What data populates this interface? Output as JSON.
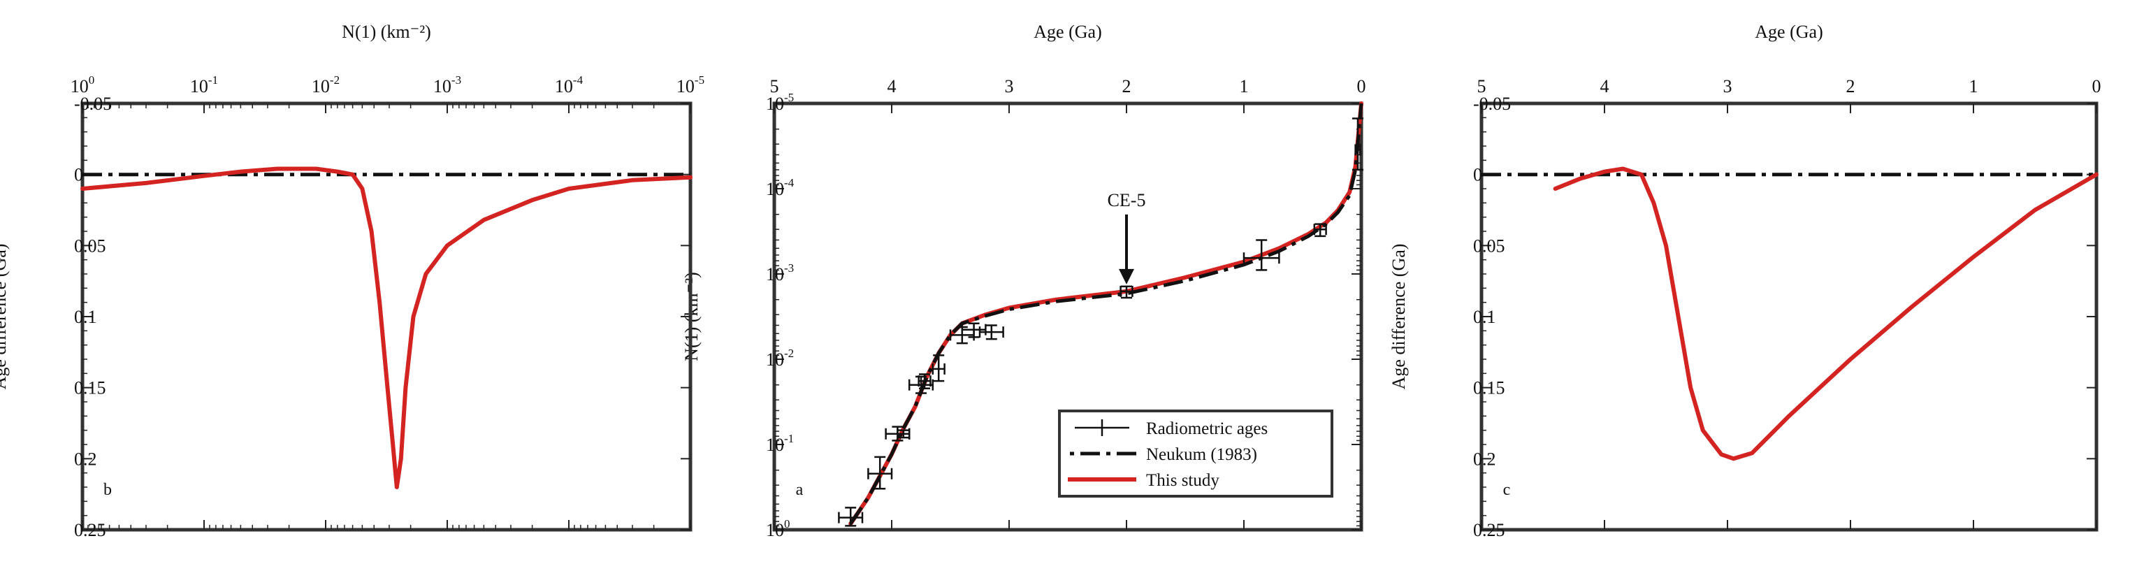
{
  "figure": {
    "mirrored": true
  },
  "colors": {
    "study": "#d42421",
    "reference": "#111111",
    "marker": "#111111",
    "frame": "#333333"
  },
  "chart_data": [
    {
      "id": "a",
      "type": "line",
      "panel_label": "a",
      "top_axis": {
        "label": "Age (Ga)",
        "range": [
          5,
          0
        ],
        "ticks": [
          5,
          4,
          3,
          2,
          1,
          0
        ]
      },
      "left_axis": {
        "label": "N(1) (km⁻²)",
        "scale": "log",
        "range": [
          1e-05,
          1
        ],
        "ticks": [
          {
            "value": 1e-05,
            "base": "10",
            "exp": "-5"
          },
          {
            "value": 0.0001,
            "base": "10",
            "exp": "-4"
          },
          {
            "value": 0.001,
            "base": "10",
            "exp": "-3"
          },
          {
            "value": 0.01,
            "base": "10",
            "exp": "-2"
          },
          {
            "value": 0.1,
            "base": "10",
            "exp": "-1"
          },
          {
            "value": 1,
            "base": "10",
            "exp": "0"
          }
        ]
      },
      "annotation": {
        "text": "CE-5",
        "x": 2.0,
        "y": 0.0016
      },
      "legend": [
        {
          "label": "Radiometric ages",
          "marker": "errorbar"
        },
        {
          "label": "Neukum (1983)",
          "marker": "dashdot"
        },
        {
          "label": "This study",
          "marker": "red-line"
        }
      ],
      "series": [
        {
          "name": "This study",
          "style": "study",
          "points": [
            [
              4.35,
              0.85
            ],
            [
              4.2,
              0.42
            ],
            [
              4.0,
              0.13
            ],
            [
              3.9,
              0.065
            ],
            [
              3.8,
              0.036
            ],
            [
              3.7,
              0.016
            ],
            [
              3.6,
              0.0085
            ],
            [
              3.5,
              0.0052
            ],
            [
              3.4,
              0.0038
            ],
            [
              3.2,
              0.003
            ],
            [
              3.0,
              0.0025
            ],
            [
              2.6,
              0.002
            ],
            [
              2.0,
              0.0016
            ],
            [
              1.5,
              0.0011
            ],
            [
              1.0,
              0.00072
            ],
            [
              0.7,
              0.0005
            ],
            [
              0.45,
              0.00034
            ],
            [
              0.3,
              0.00025
            ],
            [
              0.2,
              0.00018
            ],
            [
              0.1,
              0.00011
            ],
            [
              0.05,
              5.5e-05
            ],
            [
              0.0,
              1e-05
            ]
          ]
        },
        {
          "name": "Neukum (1983)",
          "style": "reference",
          "points": [
            [
              4.35,
              0.85
            ],
            [
              4.2,
              0.42
            ],
            [
              4.0,
              0.13
            ],
            [
              3.9,
              0.065
            ],
            [
              3.8,
              0.036
            ],
            [
              3.7,
              0.016
            ],
            [
              3.6,
              0.0085
            ],
            [
              3.5,
              0.0052
            ],
            [
              3.4,
              0.0038
            ],
            [
              3.2,
              0.0031
            ],
            [
              3.0,
              0.0026
            ],
            [
              2.6,
              0.0021
            ],
            [
              2.0,
              0.0017
            ],
            [
              1.5,
              0.0012
            ],
            [
              1.0,
              0.00078
            ],
            [
              0.7,
              0.00054
            ],
            [
              0.45,
              0.00036
            ],
            [
              0.3,
              0.00026
            ],
            [
              0.2,
              0.00019
            ],
            [
              0.1,
              0.00012
            ],
            [
              0.05,
              6e-05
            ],
            [
              0.0,
              1e-05
            ]
          ]
        }
      ],
      "radiometric_ages": [
        {
          "age": 4.35,
          "n": 0.72,
          "age_err": 0.1,
          "n_lo": 0.55,
          "n_hi": 0.9
        },
        {
          "age": 4.1,
          "n": 0.22,
          "age_err": 0.1,
          "n_lo": 0.14,
          "n_hi": 0.33
        },
        {
          "age": 3.95,
          "n": 0.075,
          "age_err": 0.1,
          "n_lo": 0.062,
          "n_hi": 0.09
        },
        {
          "age": 3.9,
          "n": 0.075,
          "age_err": 0.05,
          "n_lo": 0.068,
          "n_hi": 0.083
        },
        {
          "age": 3.75,
          "n": 0.02,
          "age_err": 0.1,
          "n_lo": 0.016,
          "n_hi": 0.025
        },
        {
          "age": 3.72,
          "n": 0.018,
          "age_err": 0.05,
          "n_lo": 0.015,
          "n_hi": 0.022
        },
        {
          "age": 3.6,
          "n": 0.013,
          "age_err": 0.05,
          "n_lo": 0.009,
          "n_hi": 0.018
        },
        {
          "age": 3.4,
          "n": 0.0052,
          "age_err": 0.1,
          "n_lo": 0.0042,
          "n_hi": 0.0065
        },
        {
          "age": 3.3,
          "n": 0.0045,
          "age_err": 0.1,
          "n_lo": 0.0038,
          "n_hi": 0.0055
        },
        {
          "age": 3.15,
          "n": 0.0048,
          "age_err": 0.1,
          "n_lo": 0.004,
          "n_hi": 0.0058
        },
        {
          "age": 2.0,
          "n": 0.0016,
          "age_err": 0.05,
          "n_lo": 0.0014,
          "n_hi": 0.0019
        },
        {
          "age": 0.85,
          "n": 0.00065,
          "age_err": 0.15,
          "n_lo": 0.0004,
          "n_hi": 0.0009
        },
        {
          "age": 0.35,
          "n": 0.0003,
          "age_err": 0.05,
          "n_lo": 0.00026,
          "n_hi": 0.00036
        },
        {
          "age": 0.03,
          "n": 3.5e-05,
          "age_err": 0.02,
          "n_lo": 1.5e-05,
          "n_hi": 6e-05
        }
      ]
    },
    {
      "id": "b",
      "type": "line",
      "panel_label": "b",
      "top_axis": {
        "label": "N(1) (km⁻²)",
        "scale": "log",
        "range": [
          1,
          1e-05
        ],
        "ticks": [
          {
            "value": 1,
            "base": "10",
            "exp": "0"
          },
          {
            "value": 0.1,
            "base": "10",
            "exp": "-1"
          },
          {
            "value": 0.01,
            "base": "10",
            "exp": "-2"
          },
          {
            "value": 0.001,
            "base": "10",
            "exp": "-3"
          },
          {
            "value": 0.0001,
            "base": "10",
            "exp": "-4"
          },
          {
            "value": 1e-05,
            "base": "10",
            "exp": "-5"
          }
        ]
      },
      "left_axis": {
        "label": "Age difference (Ga)",
        "range": [
          -0.05,
          0.25
        ],
        "ticks": [
          "-0.05",
          "0",
          "0.05",
          "0.1",
          "0.15",
          "0.2",
          "0.25"
        ]
      },
      "series": [
        {
          "name": "Neukum (1983)",
          "style": "reference",
          "points": [
            [
              1,
              0
            ],
            [
              1e-05,
              0
            ]
          ]
        },
        {
          "name": "This study",
          "style": "study",
          "points": [
            [
              1,
              0.01
            ],
            [
              0.3,
              0.006
            ],
            [
              0.1,
              0.001
            ],
            [
              0.05,
              -0.002
            ],
            [
              0.025,
              -0.004
            ],
            [
              0.012,
              -0.004
            ],
            [
              0.008,
              -0.002
            ],
            [
              0.006,
              0.0
            ],
            [
              0.005,
              0.01
            ],
            [
              0.0042,
              0.04
            ],
            [
              0.0036,
              0.09
            ],
            [
              0.0031,
              0.15
            ],
            [
              0.0028,
              0.19
            ],
            [
              0.0026,
              0.22
            ],
            [
              0.0024,
              0.2
            ],
            [
              0.0022,
              0.15
            ],
            [
              0.0019,
              0.1
            ],
            [
              0.0015,
              0.07
            ],
            [
              0.001,
              0.05
            ],
            [
              0.0005,
              0.032
            ],
            [
              0.0002,
              0.018
            ],
            [
              0.0001,
              0.01
            ],
            [
              3e-05,
              0.004
            ],
            [
              1e-05,
              0.002
            ]
          ]
        }
      ]
    },
    {
      "id": "c",
      "type": "line",
      "panel_label": "c",
      "top_axis": {
        "label": "Age (Ga)",
        "range": [
          5,
          0
        ],
        "ticks": [
          5,
          4,
          3,
          2,
          1,
          0
        ]
      },
      "left_axis": {
        "label": "Age difference (Ga)",
        "range": [
          -0.05,
          0.25
        ],
        "ticks": [
          "-0.05",
          "0",
          "0.05",
          "0.1",
          "0.15",
          "0.2",
          "0.25"
        ]
      },
      "series": [
        {
          "name": "Neukum (1983)",
          "style": "reference",
          "points": [
            [
              5,
              0
            ],
            [
              0,
              0
            ]
          ]
        },
        {
          "name": "This study",
          "style": "study",
          "points": [
            [
              4.4,
              0.01
            ],
            [
              4.2,
              0.003
            ],
            [
              4.0,
              -0.002
            ],
            [
              3.85,
              -0.004
            ],
            [
              3.7,
              0.0
            ],
            [
              3.6,
              0.02
            ],
            [
              3.5,
              0.05
            ],
            [
              3.4,
              0.1
            ],
            [
              3.3,
              0.15
            ],
            [
              3.2,
              0.18
            ],
            [
              3.05,
              0.197
            ],
            [
              2.95,
              0.2
            ],
            [
              2.8,
              0.196
            ],
            [
              2.5,
              0.17
            ],
            [
              2.0,
              0.13
            ],
            [
              1.5,
              0.093
            ],
            [
              1.0,
              0.058
            ],
            [
              0.5,
              0.025
            ],
            [
              0.0,
              0.0
            ]
          ]
        }
      ]
    }
  ]
}
